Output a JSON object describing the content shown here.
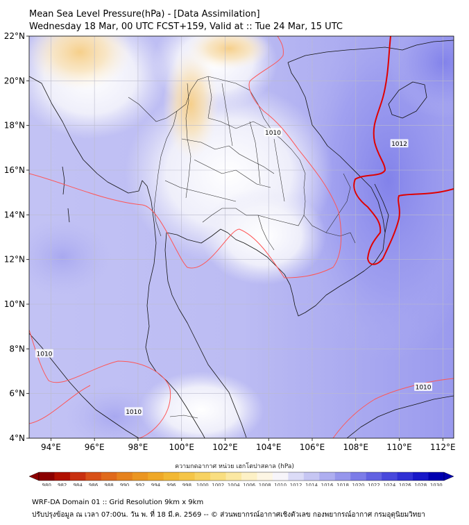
{
  "title": {
    "line1": "Mean Sea Level Pressure(hPa) - [Data Assimilation]",
    "line2": "Wednesday 18 Mar, 00 UTC FCST+159, Valid at :: Tue 24 Mar, 15 UTC"
  },
  "map": {
    "lon_range": [
      93,
      112.5
    ],
    "lat_range": [
      4,
      22
    ],
    "lon_ticks": [
      "94°E",
      "96°E",
      "98°E",
      "100°E",
      "102°E",
      "104°E",
      "106°E",
      "108°E",
      "110°E",
      "112°E"
    ],
    "lat_ticks": [
      "4°N",
      "6°N",
      "8°N",
      "10°N",
      "12°N",
      "14°N",
      "16°N",
      "18°N",
      "20°N",
      "22°N"
    ],
    "contour_labels": [
      {
        "text": "1010",
        "lon": 104.2,
        "lat": 17.7
      },
      {
        "text": "1012",
        "lon": 110.0,
        "lat": 17.2
      },
      {
        "text": "1010",
        "lon": 93.7,
        "lat": 7.8
      },
      {
        "text": "1010",
        "lon": 97.8,
        "lat": 5.2
      },
      {
        "text": "1010",
        "lon": 111.1,
        "lat": 6.3
      }
    ],
    "colors": {
      "contour_1010": "#ff5555",
      "contour_1012": "#e00000",
      "land_border": "#111111",
      "grid": "#bbbbcc"
    }
  },
  "colorbar": {
    "label": "ความกดอากาศ หน่วย เฮกโตปาสคาล (hPa)",
    "ticks": [
      "980",
      "982",
      "984",
      "986",
      "988",
      "990",
      "992",
      "994",
      "996",
      "998",
      "1000",
      "1002",
      "1004",
      "1006",
      "1008",
      "1010",
      "1012",
      "1014",
      "1016",
      "1018",
      "1020",
      "1022",
      "1024",
      "1026",
      "1028",
      "1030"
    ],
    "colors": [
      "#8b0000",
      "#b01000",
      "#c83010",
      "#d85018",
      "#e06a1c",
      "#e6821e",
      "#eb9622",
      "#efa828",
      "#f2b834",
      "#f5c548",
      "#f7d262",
      "#f9de80",
      "#fbe8a2",
      "#fdf1c6",
      "#fdf6e4",
      "#f7f5fa",
      "#dcdcf7",
      "#c6c6f3",
      "#aeaef0",
      "#9696ec",
      "#7c7ce8",
      "#6262e2",
      "#4848dc",
      "#3030d4",
      "#1818c8",
      "#0000b0"
    ]
  },
  "footer": {
    "line1": "WRF-DA Domain 01 :: Grid Resolution 9km x 9km",
    "line2": "ปรับปรุงข้อมูล ณ เวลา 07:00น. วัน พ. ที่ 18 มี.ค. 2569 -- © ส่วนพยากรณ์อากาศเชิงตัวเลข กองพยากรณ์อากาศ กรมอุตุนิยมวิทยา"
  }
}
